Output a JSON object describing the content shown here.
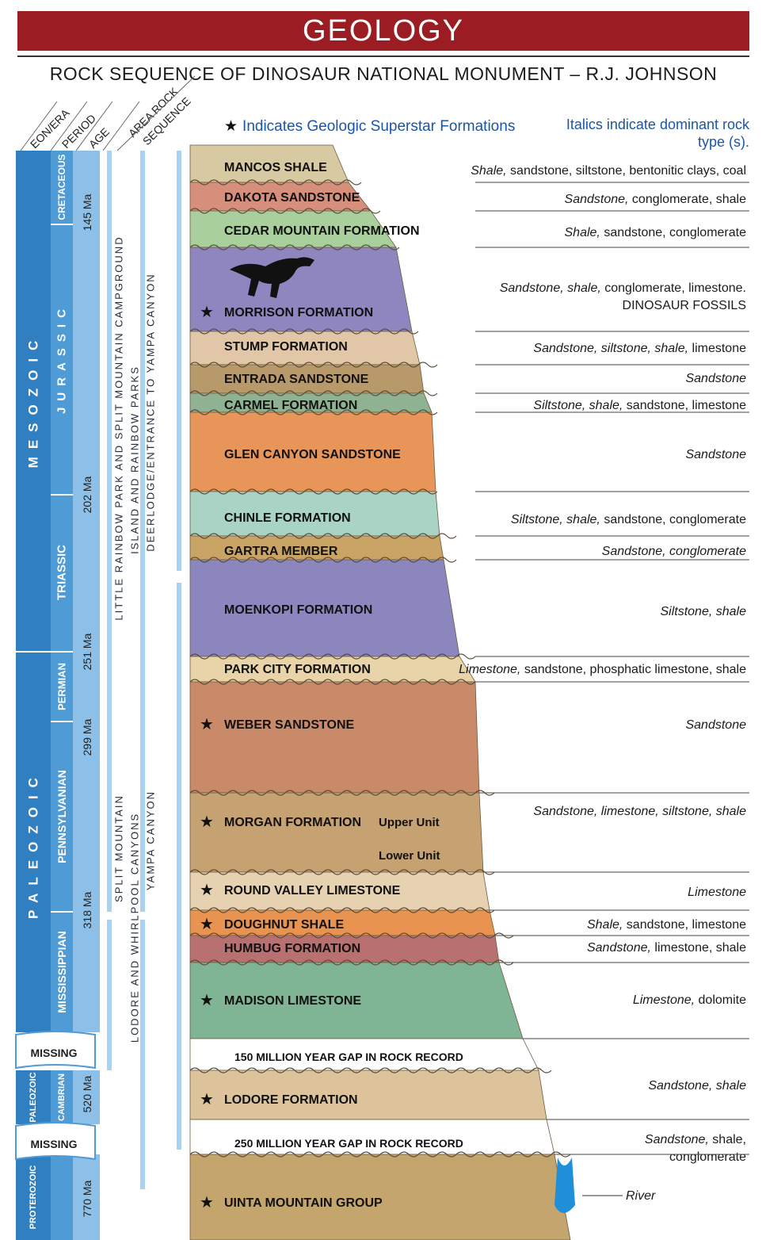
{
  "banner": {
    "title": "GEOLOGY"
  },
  "subtitle": "ROCK SEQUENCE OF DINOSAUR NATIONAL MONUMENT – R.J. JOHNSON",
  "notes": {
    "superstar_star": "★",
    "superstar": "Indicates Geologic Superstar Formations",
    "italics": "Italics indicate dominant rock type (s)."
  },
  "column_headers": [
    "EON/ERA",
    "PERIOD",
    "AGE",
    "AREA ROCK SEQUENCE"
  ],
  "eras": [
    "MESOZOIC",
    "PALEOZOIC",
    "PALEOZOIC",
    "PROTEROZOIC"
  ],
  "periods": [
    "CRETACEOUS",
    "JURASSIC",
    "TRIASSIC",
    "PERMIAN",
    "PENNSYLVANIAN",
    "MISSISSIPPIAN",
    "CAMBRIAN"
  ],
  "missing_label": "MISSING",
  "ages": [
    "145 Ma",
    "202 Ma",
    "251 Ma",
    "299 Ma",
    "318 Ma",
    "520 Ma",
    "770 Ma"
  ],
  "area_sequences": [
    "LITTLE RAINBOW PARK AND SPLIT MOUNTAIN CAMPGROUND",
    "ISLAND AND RAINBOW PARKS",
    "DEERLODGE/ENTRANCE TO YAMPA CANYON",
    "SPLIT MOUNTAIN",
    "LODORE AND WHIRLPOOL CANYONS",
    "YAMPA CANYON"
  ],
  "formations": [
    {
      "name": "MANCOS SHALE",
      "star": false,
      "color": "#d7c9a2",
      "rocks_italic": "Shale,",
      "rocks": " sandstone, siltstone, bentonitic clays, coal"
    },
    {
      "name": "DAKOTA SANDSTONE",
      "star": false,
      "color": "#d68f7a",
      "rocks_italic": "Sandstone,",
      "rocks": " conglomerate, shale"
    },
    {
      "name": "CEDAR MOUNTAIN FORMATION",
      "star": false,
      "color": "#a9cf9d",
      "rocks_italic": "Shale,",
      "rocks": " sandstone, conglomerate"
    },
    {
      "name": "MORRISON FORMATION",
      "star": true,
      "color": "#8f86bf",
      "rocks_italic": "Sandstone, shale,",
      "rocks": " conglomerate, limestone.",
      "rocks_extra": "DINOSAUR FOSSILS"
    },
    {
      "name": "STUMP FORMATION",
      "star": false,
      "color": "#e2c6a8",
      "rocks_italic": "Sandstone, siltstone, shale,",
      "rocks": " limestone"
    },
    {
      "name": "ENTRADA SANDSTONE",
      "star": false,
      "color": "#b89a6a",
      "rocks_italic": "Sandstone",
      "rocks": ""
    },
    {
      "name": "CARMEL FORMATION",
      "star": false,
      "color": "#8fb292",
      "rocks_italic": "Siltstone, shale,",
      "rocks": " sandstone, limestone"
    },
    {
      "name": "GLEN CANYON SANDSTONE",
      "star": false,
      "color": "#e8955a",
      "rocks_italic": "Sandstone",
      "rocks": ""
    },
    {
      "name": "CHINLE FORMATION",
      "star": false,
      "color": "#a9d3c4",
      "rocks_italic": "Siltstone, shale,",
      "rocks": " sandstone, conglomerate"
    },
    {
      "name": "GARTRA MEMBER",
      "star": false,
      "color": "#c9a465",
      "rocks_italic": "Sandstone, conglomerate",
      "rocks": ""
    },
    {
      "name": "MOENKOPI FORMATION",
      "star": false,
      "color": "#8c86be",
      "rocks_italic": "Siltstone, shale",
      "rocks": ""
    },
    {
      "name": "PARK CITY FORMATION",
      "star": false,
      "color": "#e9d3a8",
      "rocks_italic": "Limestone,",
      "rocks": " sandstone, phosphatic limestone, shale"
    },
    {
      "name": "WEBER SANDSTONE",
      "star": true,
      "color": "#c98a6a",
      "rocks_italic": "Sandstone",
      "rocks": ""
    },
    {
      "name": "MORGAN FORMATION",
      "star": true,
      "color": "#c6a172",
      "rocks_italic": "Sandstone, limestone, siltstone, shale",
      "rocks": "",
      "upper": "Upper Unit",
      "lower": "Lower Unit"
    },
    {
      "name": "ROUND VALLEY LIMESTONE",
      "star": true,
      "color": "#e6d1b1",
      "rocks_italic": "Limestone",
      "rocks": ""
    },
    {
      "name": "DOUGHNUT SHALE",
      "star": true,
      "color": "#e8934f",
      "rocks_italic": "Shale,",
      "rocks": " sandstone, limestone"
    },
    {
      "name": "HUMBUG FORMATION",
      "star": false,
      "color": "#b87070",
      "rocks_italic": "Sandstone,",
      "rocks": " limestone, shale"
    },
    {
      "name": "MADISON LIMESTONE",
      "star": true,
      "color": "#7fb594",
      "rocks_italic": "Limestone,",
      "rocks": " dolomite"
    },
    {
      "name": "150 MILLION YEAR GAP IN ROCK RECORD",
      "star": false,
      "color": "#ffffff",
      "rocks_italic": "",
      "rocks": ""
    },
    {
      "name": "LODORE FORMATION",
      "star": true,
      "color": "#dcc39b",
      "rocks_italic": "Sandstone, shale",
      "rocks": ""
    },
    {
      "name": "250 MILLION YEAR GAP IN ROCK RECORD",
      "star": false,
      "color": "#ffffff",
      "rocks_italic": "Sandstone,",
      "rocks": " shale,",
      "rocks_extra": "conglomerate"
    },
    {
      "name": "UINTA MOUNTAIN GROUP",
      "star": true,
      "color": "#c4a56e",
      "rocks_italic": "",
      "rocks": ""
    }
  ],
  "river_label": "River",
  "colors": {
    "banner": "#9b1c22",
    "era_blue": "#2f7fc1",
    "period_blue": "#4f9bd6",
    "age_blue": "#8cc0e8",
    "seq_blue": "#a9d2f0",
    "note_blue": "#1a56a8",
    "river": "#1f8fd8"
  }
}
